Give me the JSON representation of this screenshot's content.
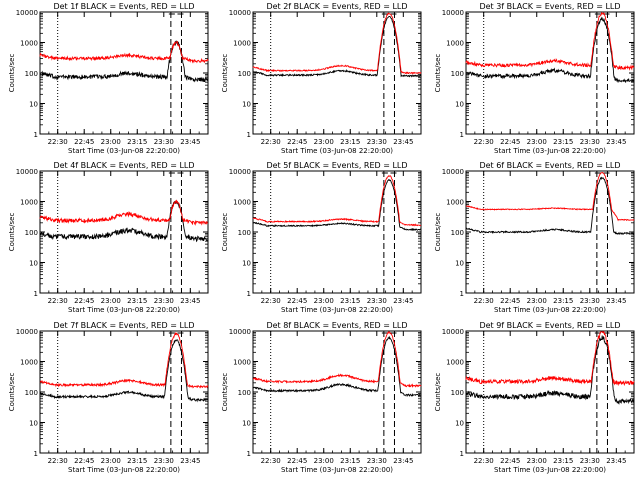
{
  "chart_data": [
    {
      "type": "line",
      "title": "Det 1f BLACK = Events, RED = LLD",
      "xlabel": "Start Time (03-Jun-08 22:20:00)",
      "ylabel": "Counts/sec",
      "x_ticks": [
        "22:30",
        "22:45",
        "23:00",
        "23:15",
        "23:30",
        "23:45"
      ],
      "y_ticks": [
        "1",
        "10",
        "100",
        "1000",
        "10000"
      ],
      "ylim": [
        1,
        10000
      ],
      "log_y": true,
      "series": [
        {
          "name": "Events",
          "color": "#000000",
          "base": 75,
          "peak": 1000,
          "bump": 1.3,
          "noise": 0.14,
          "after": 60
        },
        {
          "name": "LLD",
          "color": "#ff0000",
          "base": 300,
          "peak": 1000,
          "bump": 1.25,
          "noise": 0.1,
          "after": 250
        }
      ],
      "markers": {
        "dotted": "22:30",
        "dashed": [
          "23:34",
          "23:40"
        ]
      }
    },
    {
      "type": "line",
      "title": "Det 2f BLACK = Events, RED = LLD",
      "xlabel": "Start Time (03-Jun-08 22:20:00)",
      "ylabel": "Counts/sec",
      "x_ticks": [
        "22:30",
        "22:45",
        "23:00",
        "23:15",
        "23:30",
        "23:45"
      ],
      "y_ticks": [
        "1",
        "10",
        "100",
        "1000",
        "10000"
      ],
      "ylim": [
        1,
        10000
      ],
      "log_y": true,
      "series": [
        {
          "name": "Events",
          "color": "#000000",
          "base": 85,
          "peak": 7000,
          "bump": 1.4,
          "noise": 0.05,
          "after": 80
        },
        {
          "name": "LLD",
          "color": "#ff0000",
          "base": 120,
          "peak": 9000,
          "bump": 1.45,
          "noise": 0.04,
          "after": 100
        }
      ],
      "markers": {
        "dotted": "22:30",
        "dashed": [
          "23:34",
          "23:40"
        ]
      }
    },
    {
      "type": "line",
      "title": "Det 3f BLACK = Events, RED = LLD",
      "xlabel": "Start Time (03-Jun-08 22:20:00)",
      "ylabel": "Counts/sec",
      "x_ticks": [
        "22:30",
        "22:45",
        "23:00",
        "23:15",
        "23:30",
        "23:45"
      ],
      "y_ticks": [
        "1",
        "10",
        "100",
        "1000",
        "10000"
      ],
      "ylim": [
        1,
        10000
      ],
      "log_y": true,
      "series": [
        {
          "name": "Events",
          "color": "#000000",
          "base": 80,
          "peak": 6000,
          "bump": 1.5,
          "noise": 0.12,
          "after": 55
        },
        {
          "name": "LLD",
          "color": "#ff0000",
          "base": 180,
          "peak": 9000,
          "bump": 1.4,
          "noise": 0.1,
          "after": 150
        }
      ],
      "markers": {
        "dotted": "22:30",
        "dashed": [
          "23:34",
          "23:40"
        ]
      }
    },
    {
      "type": "line",
      "title": "Det 4f BLACK = Events, RED = LLD",
      "xlabel": "Start Time (03-Jun-08 22:20:00)",
      "ylabel": "Counts/sec",
      "x_ticks": [
        "22:30",
        "22:45",
        "23:00",
        "23:15",
        "23:30",
        "23:45"
      ],
      "y_ticks": [
        "1",
        "10",
        "100",
        "1000",
        "10000"
      ],
      "ylim": [
        1,
        10000
      ],
      "log_y": true,
      "series": [
        {
          "name": "Events",
          "color": "#000000",
          "base": 70,
          "peak": 1000,
          "bump": 1.6,
          "noise": 0.16,
          "after": 60
        },
        {
          "name": "LLD",
          "color": "#ff0000",
          "base": 240,
          "peak": 1000,
          "bump": 1.6,
          "noise": 0.12,
          "after": 200
        }
      ],
      "markers": {
        "dotted": "22:30",
        "dashed": [
          "23:34",
          "23:40"
        ]
      }
    },
    {
      "type": "line",
      "title": "Det 5f BLACK = Events, RED = LLD",
      "xlabel": "Start Time (03-Jun-08 22:20:00)",
      "ylabel": "Counts/sec",
      "x_ticks": [
        "22:30",
        "22:45",
        "23:00",
        "23:15",
        "23:30",
        "23:45"
      ],
      "y_ticks": [
        "1",
        "10",
        "100",
        "1000",
        "10000"
      ],
      "ylim": [
        1,
        10000
      ],
      "log_y": true,
      "series": [
        {
          "name": "Events",
          "color": "#000000",
          "base": 160,
          "peak": 5000,
          "bump": 1.2,
          "noise": 0.04,
          "after": 120
        },
        {
          "name": "LLD",
          "color": "#ff0000",
          "base": 220,
          "peak": 7000,
          "bump": 1.2,
          "noise": 0.04,
          "after": 170
        }
      ],
      "markers": {
        "dotted": "22:30",
        "dashed": [
          "23:34",
          "23:40"
        ]
      }
    },
    {
      "type": "line",
      "title": "Det 6f BLACK = Events, RED = LLD",
      "xlabel": "Start Time (03-Jun-08 22:20:00)",
      "ylabel": "Counts/sec",
      "x_ticks": [
        "22:30",
        "22:45",
        "23:00",
        "23:15",
        "23:30",
        "23:45"
      ],
      "y_ticks": [
        "1",
        "10",
        "100",
        "1000",
        "10000"
      ],
      "ylim": [
        1,
        10000
      ],
      "log_y": true,
      "series": [
        {
          "name": "Events",
          "color": "#000000",
          "base": 100,
          "peak": 6000,
          "bump": 1.2,
          "noise": 0.05,
          "after": 90
        },
        {
          "name": "LLD",
          "color": "#ff0000",
          "base": 550,
          "peak": 9000,
          "bump": 1.1,
          "noise": 0.03,
          "after": 250
        }
      ],
      "markers": {
        "dotted": "22:30",
        "dashed": [
          "23:34",
          "23:40"
        ]
      }
    },
    {
      "type": "line",
      "title": "Det 7f BLACK = Events, RED = LLD",
      "xlabel": "Start Time (03-Jun-08 22:20:00)",
      "ylabel": "Counts/sec",
      "x_ticks": [
        "22:30",
        "22:45",
        "23:00",
        "23:15",
        "23:30",
        "23:45"
      ],
      "y_ticks": [
        "1",
        "10",
        "100",
        "1000",
        "10000"
      ],
      "ylim": [
        1,
        10000
      ],
      "log_y": true,
      "series": [
        {
          "name": "Events",
          "color": "#000000",
          "base": 70,
          "peak": 5000,
          "bump": 1.4,
          "noise": 0.07,
          "after": 55
        },
        {
          "name": "LLD",
          "color": "#ff0000",
          "base": 170,
          "peak": 8000,
          "bump": 1.4,
          "noise": 0.07,
          "after": 150
        }
      ],
      "markers": {
        "dotted": "22:30",
        "dashed": [
          "23:34",
          "23:40"
        ]
      }
    },
    {
      "type": "line",
      "title": "Det 8f BLACK = Events, RED = LLD",
      "xlabel": "Start Time (03-Jun-08 22:20:00)",
      "ylabel": "Counts/sec",
      "x_ticks": [
        "22:30",
        "22:45",
        "23:00",
        "23:15",
        "23:30",
        "23:45"
      ],
      "y_ticks": [
        "1",
        "10",
        "100",
        "1000",
        "10000"
      ],
      "ylim": [
        1,
        10000
      ],
      "log_y": true,
      "series": [
        {
          "name": "Events",
          "color": "#000000",
          "base": 110,
          "peak": 6000,
          "bump": 1.6,
          "noise": 0.06,
          "after": 80
        },
        {
          "name": "LLD",
          "color": "#ff0000",
          "base": 220,
          "peak": 9000,
          "bump": 1.6,
          "noise": 0.06,
          "after": 160
        }
      ],
      "markers": {
        "dotted": "22:30",
        "dashed": [
          "23:34",
          "23:40"
        ]
      }
    },
    {
      "type": "line",
      "title": "Det 9f BLACK = Events, RED = LLD",
      "xlabel": "Start Time (03-Jun-08 22:20:00)",
      "ylabel": "Counts/sec",
      "x_ticks": [
        "22:30",
        "22:45",
        "23:00",
        "23:15",
        "23:30",
        "23:45"
      ],
      "y_ticks": [
        "1",
        "10",
        "100",
        "1000",
        "10000"
      ],
      "ylim": [
        1,
        10000
      ],
      "log_y": true,
      "series": [
        {
          "name": "Events",
          "color": "#000000",
          "base": 70,
          "peak": 6000,
          "bump": 1.3,
          "noise": 0.15,
          "after": 50
        },
        {
          "name": "LLD",
          "color": "#ff0000",
          "base": 220,
          "peak": 9000,
          "bump": 1.3,
          "noise": 0.13,
          "after": 200
        }
      ],
      "markers": {
        "dotted": "22:30",
        "dashed": [
          "23:34",
          "23:40"
        ]
      }
    }
  ]
}
